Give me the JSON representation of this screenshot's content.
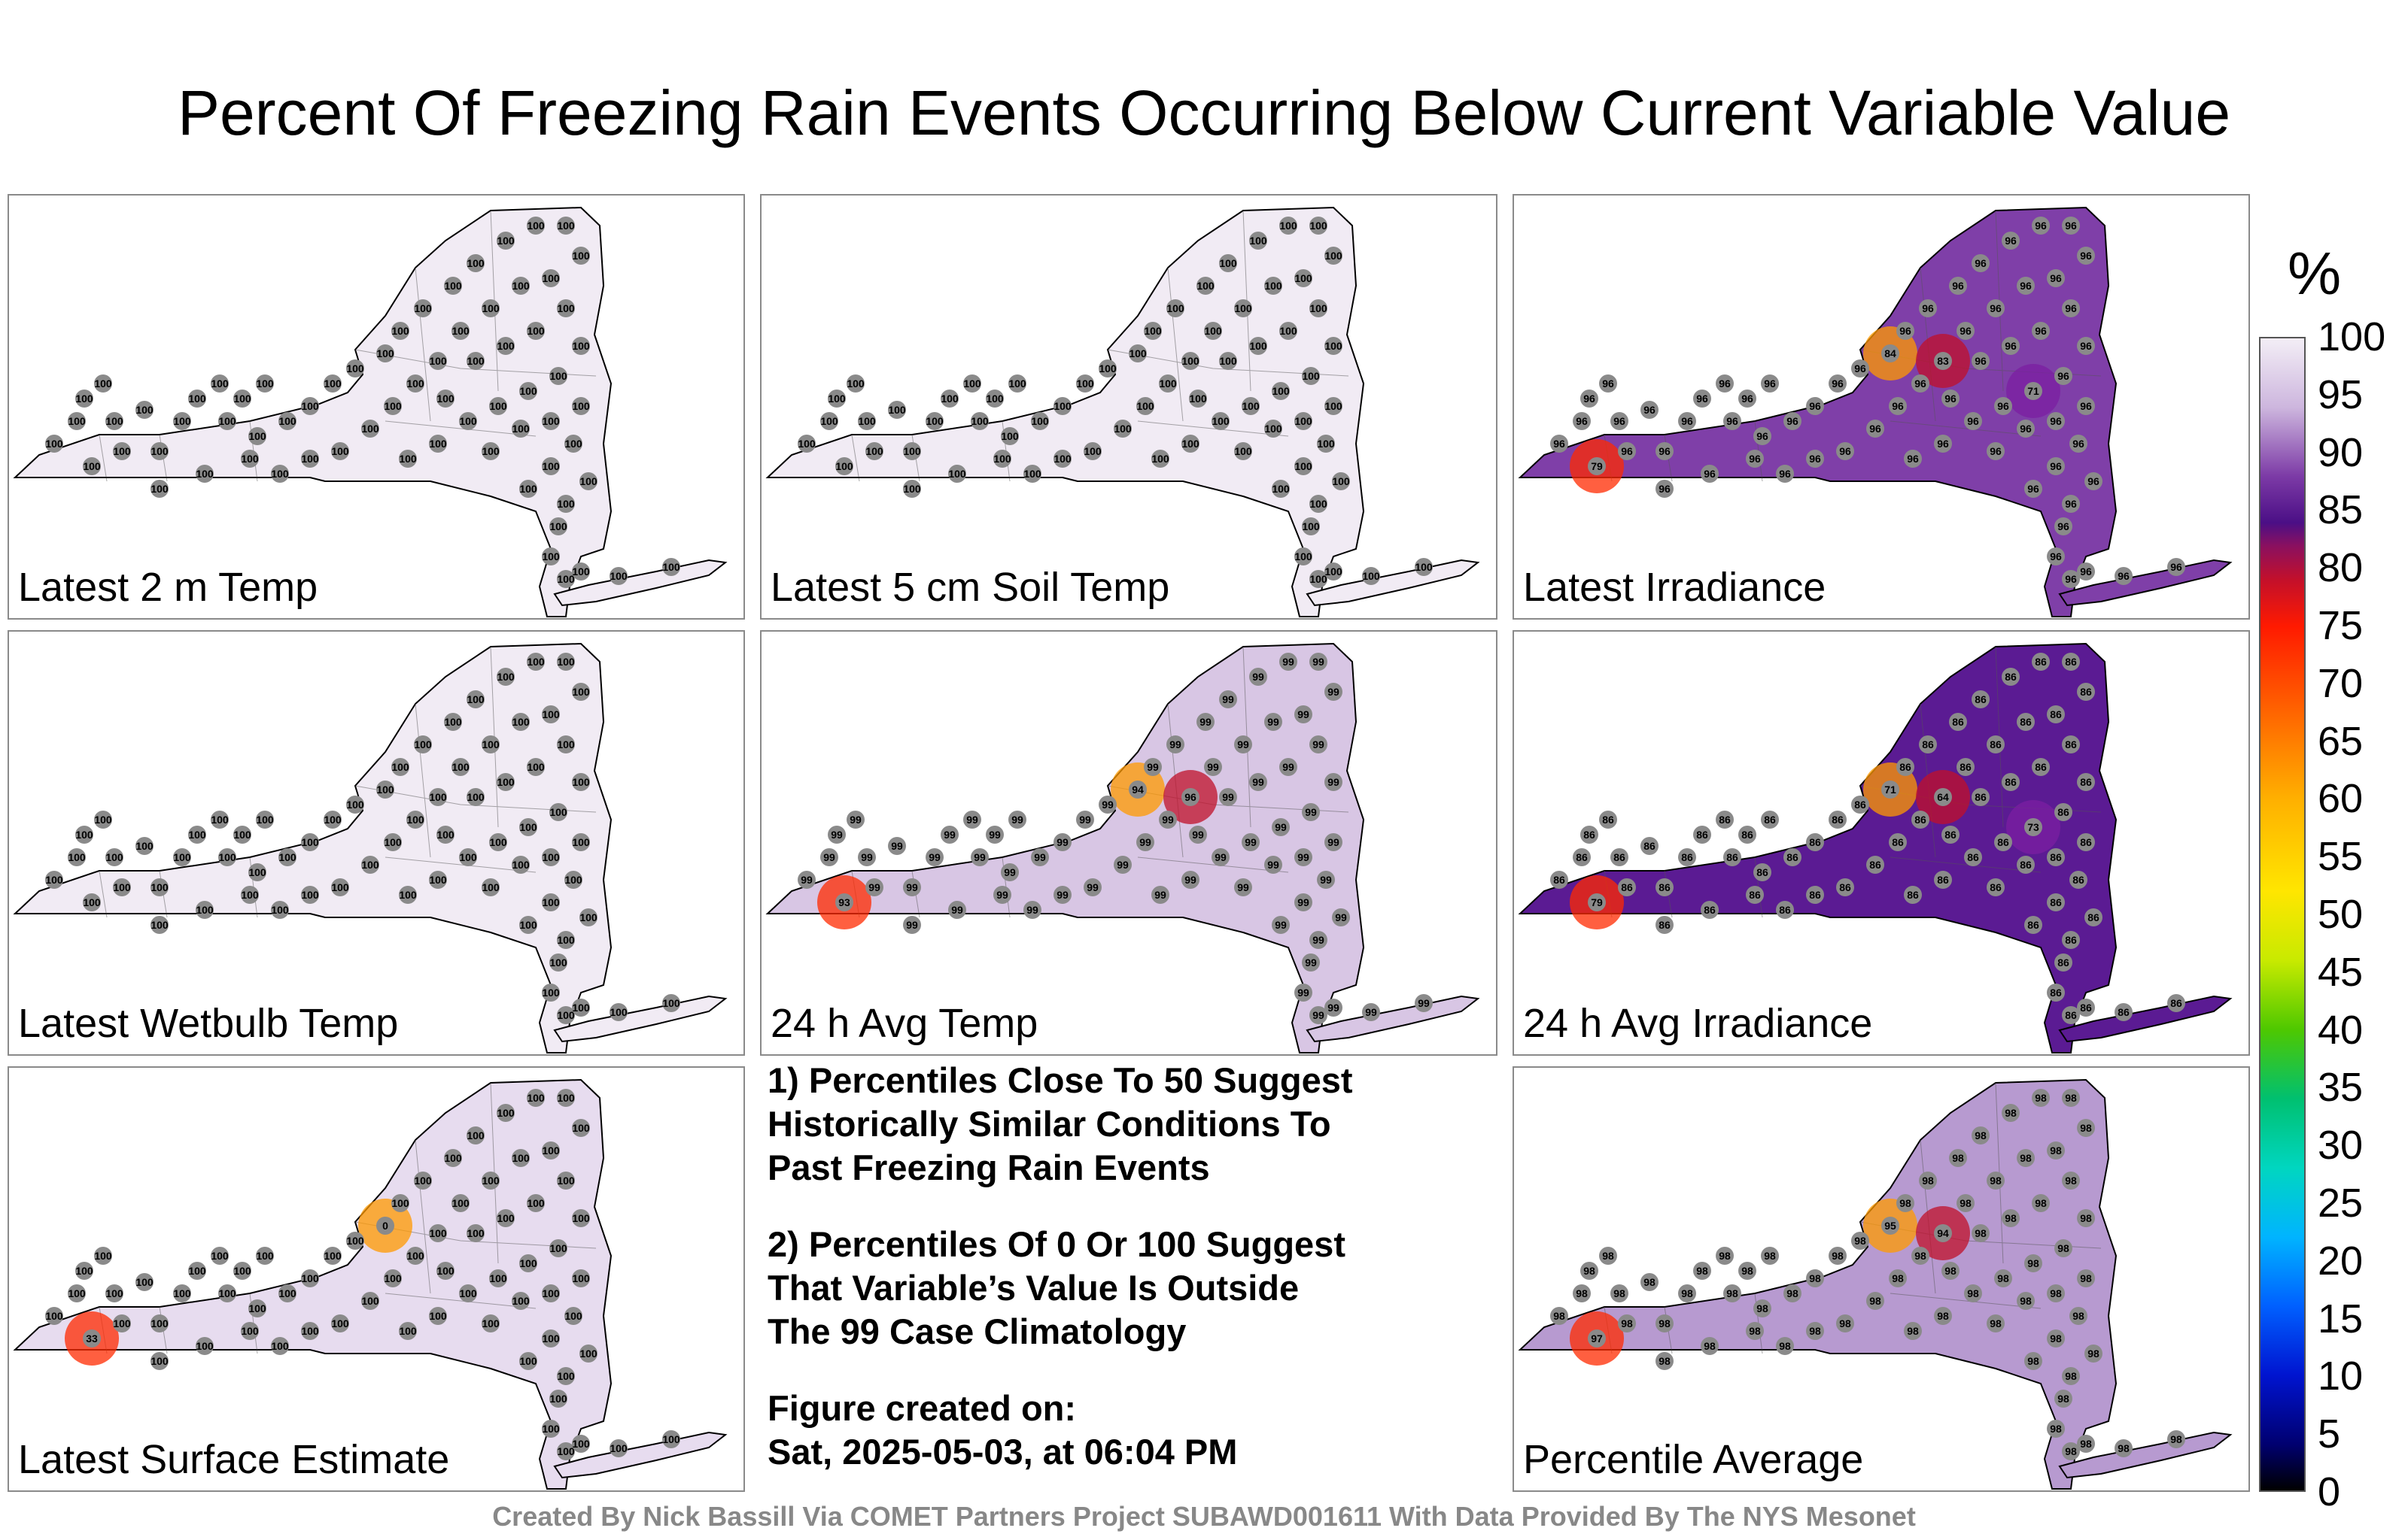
{
  "title": "Percent Of Freezing Rain Events Occurring Below Current Variable Value",
  "panels": [
    {
      "id": "p1",
      "label": "Latest 2 m Temp",
      "shade": "#f1ebf4",
      "hotspots": [],
      "value_fill": "100"
    },
    {
      "id": "p2",
      "label": "Latest 5 cm Soil Temp",
      "shade": "#f1ebf4",
      "hotspots": [],
      "value_fill": "100"
    },
    {
      "id": "p3",
      "label": "Latest Irradiance",
      "shade": "#7f3fa8",
      "hotspots": [
        "79",
        "84",
        "83",
        "71"
      ],
      "value_fill": "96"
    },
    {
      "id": "p4",
      "label": "Latest Wetbulb Temp",
      "shade": "#f1ebf4",
      "hotspots": [],
      "value_fill": "100"
    },
    {
      "id": "p5",
      "label": "24 h Avg Temp",
      "shade": "#d8c6e4",
      "hotspots": [
        "93",
        "94",
        "96"
      ],
      "value_fill": "99"
    },
    {
      "id": "p6",
      "label": "24 h Avg Irradiance",
      "shade": "#5b1b93",
      "hotspots": [
        "79",
        "71",
        "64",
        "73"
      ],
      "value_fill": "86"
    },
    {
      "id": "p7",
      "label": "Latest Surface Estimate",
      "shade": "#e7dcef",
      "hotspots": [
        "33",
        "0"
      ],
      "value_fill": "100"
    },
    {
      "id": "p8",
      "label": "Percentile Average",
      "shade": "#b79ad0",
      "hotspots": [
        "97",
        "95",
        "94"
      ],
      "value_fill": "98"
    }
  ],
  "notes": {
    "line1a": "1) Percentiles Close To 50 Suggest",
    "line1b": "Historically Similar Conditions To",
    "line1c": "Past Freezing Rain Events",
    "line2a": "2) Percentiles Of 0 Or 100 Suggest",
    "line2b": "That Variable’s Value Is Outside",
    "line2c": "The 99 Case Climatology",
    "line3a": "Figure created on:",
    "line3b": "Sat, 2025-05-03, at 06:04 PM"
  },
  "colorbar": {
    "unit": "%",
    "ticks": [
      "100",
      "95",
      "90",
      "85",
      "80",
      "75",
      "70",
      "65",
      "60",
      "55",
      "50",
      "45",
      "40",
      "35",
      "30",
      "25",
      "20",
      "15",
      "10",
      "5",
      "0"
    ]
  },
  "footer": "Created By Nick Bassill Via COMET Partners Project SUBAWD001611 With Data Provided By The NYS Mesonet"
}
